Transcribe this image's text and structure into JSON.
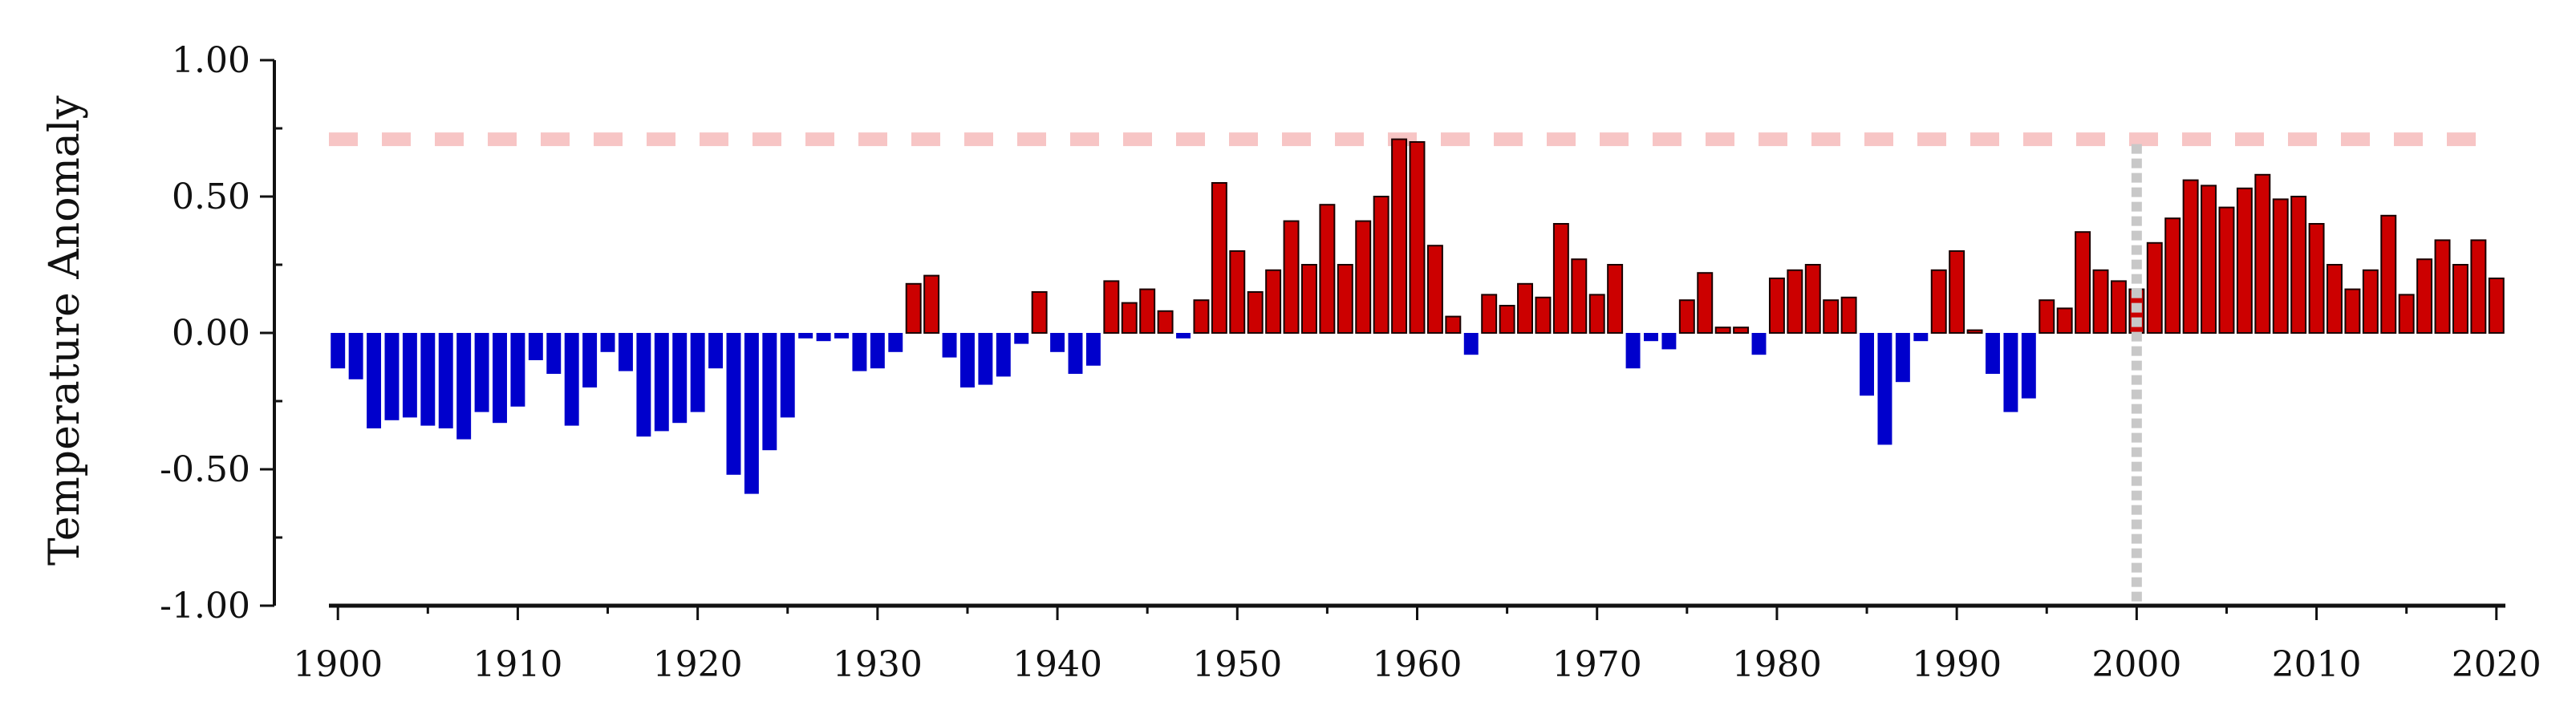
{
  "chart_data": {
    "type": "bar",
    "title": "",
    "xlabel": "",
    "ylabel": "Temperature Anomaly",
    "xlim": [
      1899.5,
      2020.5
    ],
    "ylim": [
      -1.0,
      1.0
    ],
    "x_ticks": [
      "1900",
      "1910",
      "1920",
      "1930",
      "1940",
      "1950",
      "1960",
      "1970",
      "1980",
      "1990",
      "2000",
      "2010",
      "2020"
    ],
    "y_ticks": [
      "1.00",
      "0.50",
      "0.00",
      "-0.50",
      "-1.00"
    ],
    "grid": false,
    "legend": "none",
    "colors": {
      "positive": "#cc0000",
      "negative": "#0000cc",
      "reference_line": "#f7c5c5",
      "marker_line": "#c8c8c8",
      "axis": "#111111"
    },
    "reference_line": {
      "y": 0.71,
      "style": "dashed"
    },
    "marker_line": {
      "x": 2000,
      "style": "dotted"
    },
    "series": [
      {
        "x_start": 1900,
        "values": [
          -0.13,
          -0.17,
          -0.35,
          -0.32,
          -0.31,
          -0.34,
          -0.35,
          -0.39,
          -0.29,
          -0.33,
          -0.27,
          -0.1,
          -0.15,
          -0.34,
          -0.2,
          -0.07,
          -0.14,
          -0.38,
          -0.36,
          -0.33,
          -0.29,
          -0.13,
          -0.52,
          -0.59,
          -0.43,
          -0.31,
          -0.02,
          -0.03,
          -0.02,
          -0.14,
          -0.13,
          -0.07,
          0.18,
          0.21,
          -0.09,
          -0.2,
          -0.19,
          -0.16,
          -0.04,
          0.15,
          -0.07,
          -0.15,
          -0.12,
          0.19,
          0.11,
          0.16,
          0.08,
          -0.02,
          0.12,
          0.55,
          0.3,
          0.15,
          0.23,
          0.41,
          0.25,
          0.47,
          0.25,
          0.41,
          0.5,
          0.71,
          0.7,
          0.32,
          0.06,
          -0.08,
          0.14,
          0.1,
          0.18,
          0.13,
          0.4,
          0.27,
          0.14,
          0.25,
          -0.13,
          -0.03,
          -0.06,
          0.12,
          0.22,
          0.02,
          0.02,
          -0.08,
          0.2,
          0.23,
          0.25,
          0.12,
          0.13,
          -0.23,
          -0.41,
          -0.18,
          -0.03,
          0.23,
          0.3,
          0.01,
          -0.15,
          -0.29,
          -0.24,
          0.12,
          0.09,
          0.37,
          0.23,
          0.19,
          0.16,
          0.33,
          0.42,
          0.56,
          0.54,
          0.46,
          0.53,
          0.58,
          0.49,
          0.5,
          0.4,
          0.25,
          0.16,
          0.23,
          0.43,
          0.14,
          0.27,
          0.34,
          0.25,
          0.34,
          0.2
        ]
      }
    ]
  }
}
